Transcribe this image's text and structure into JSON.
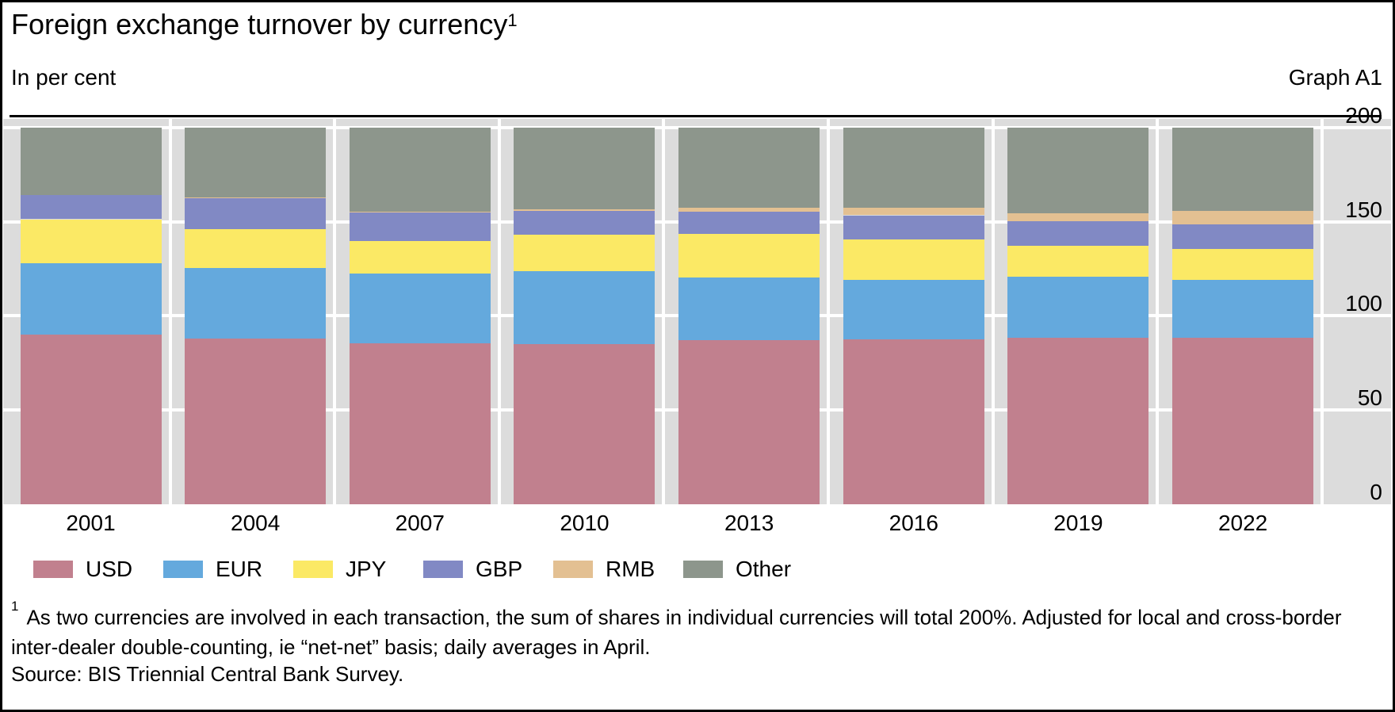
{
  "header": {
    "title": "Foreign exchange turnover by currency",
    "title_superscript": "1",
    "unit_label": "In per cent",
    "graph_label": "Graph A1"
  },
  "chart_data": {
    "type": "bar",
    "stacked": true,
    "title": "Foreign exchange turnover by currency",
    "ylabel": "In per cent",
    "categories": [
      "2001",
      "2004",
      "2007",
      "2010",
      "2013",
      "2016",
      "2019",
      "2022"
    ],
    "series": [
      {
        "name": "USD",
        "color": "#c1808e",
        "values": [
          89.9,
          88.0,
          85.6,
          84.9,
          87.0,
          87.6,
          88.3,
          88.5
        ]
      },
      {
        "name": "EUR",
        "color": "#64a9dd",
        "values": [
          37.9,
          37.4,
          37.0,
          39.0,
          33.4,
          31.4,
          32.3,
          30.5
        ]
      },
      {
        "name": "JPY",
        "color": "#fbe965",
        "values": [
          23.5,
          20.8,
          17.2,
          19.0,
          23.0,
          21.6,
          16.8,
          16.7
        ]
      },
      {
        "name": "GBP",
        "color": "#8189c4",
        "values": [
          13.0,
          16.5,
          14.9,
          12.9,
          11.8,
          12.8,
          12.8,
          12.9
        ]
      },
      {
        "name": "RMB",
        "color": "#e3c092",
        "values": [
          0.0,
          0.1,
          0.5,
          0.9,
          2.2,
          4.0,
          4.3,
          7.0
        ]
      },
      {
        "name": "Other",
        "color": "#8d968c",
        "values": [
          35.7,
          37.2,
          44.8,
          43.3,
          42.6,
          42.6,
          45.5,
          44.4
        ]
      }
    ],
    "ylim": [
      0,
      200
    ],
    "yticks": [
      0,
      50,
      100,
      150,
      200
    ],
    "grid": true,
    "grid_color": "#ffffff",
    "plot_bg": "#dcdcdc",
    "legend_position": "bottom"
  },
  "footnote": {
    "marker": "1",
    "text": "As two currencies are involved in each transaction, the sum of shares in individual currencies will total 200%. Adjusted for local and cross-border inter-dealer double-counting, ie “net-net” basis; daily averages in April."
  },
  "source": {
    "text": "Source: BIS Triennial Central Bank Survey."
  }
}
